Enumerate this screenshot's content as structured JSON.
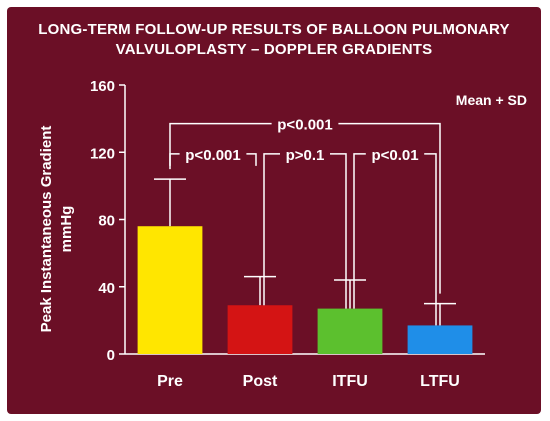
{
  "slide": {
    "background": "#6b0f26"
  },
  "chart_data": {
    "type": "bar",
    "title_lines": [
      "LONG-TERM FOLLOW-UP RESULTS OF BALLOON PULMONARY",
      "VALVULOPLASTY – DOPPLER GRADIENTS"
    ],
    "ylabel_lines": [
      "Peak Instantaneous Gradient",
      "mmHg"
    ],
    "xlabel": "",
    "legend_note": "Mean + SD",
    "ylim": [
      0,
      160
    ],
    "yticks": [
      0,
      40,
      80,
      120,
      160
    ],
    "categories": [
      "Pre",
      "Post",
      "ITFU",
      "LTFU"
    ],
    "values": [
      76,
      29,
      27,
      17
    ],
    "sd_upper": [
      104,
      46,
      44,
      30
    ],
    "colors": [
      "#ffe600",
      "#d41414",
      "#5cc02e",
      "#1f8ee8"
    ],
    "annotations": [
      {
        "label": "p<0.001",
        "from": 0,
        "to": 3,
        "y": 137
      },
      {
        "label": "p<0.001",
        "from": 0,
        "to": 1,
        "y": 119
      },
      {
        "label": "p>0.1",
        "from": 1,
        "to": 2,
        "y": 119
      },
      {
        "label": "p<0.01",
        "from": 2,
        "to": 3,
        "y": 119
      }
    ]
  }
}
